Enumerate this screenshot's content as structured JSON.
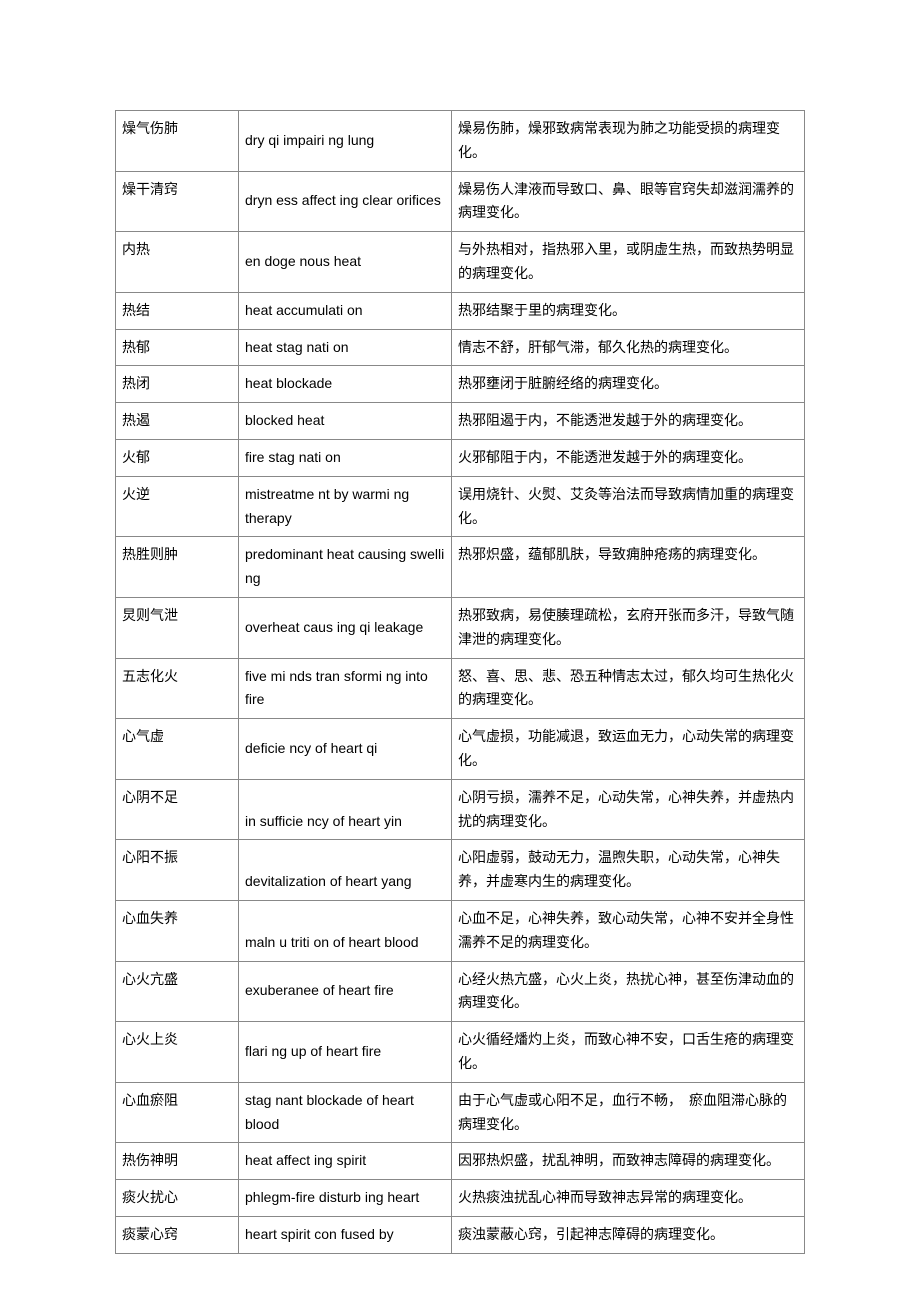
{
  "table": {
    "columns": [
      "term_zh",
      "term_en",
      "description"
    ],
    "col_widths": [
      "110px",
      "200px",
      "auto"
    ],
    "border_color": "#888888",
    "background_color": "#ffffff",
    "font_family_cn": "SimSun",
    "font_family_en": "Arial",
    "font_size": 14,
    "rows": [
      {
        "zh": "燥气伤肺",
        "en": "dry qi impairi ng lung",
        "desc": "燥易伤肺，燥邪致病常表现为肺之功能受损的病理变化。",
        "en_align": "top"
      },
      {
        "zh": "燥干清窍",
        "en": "dryn ess affect ing clear orifices",
        "desc": "燥易伤人津液而导致口、鼻、眼等官窍失却滋润濡养的病理变化。",
        "en_align": "top"
      },
      {
        "zh": "内热",
        "en": "en doge nous heat",
        "desc": "与外热相对，指热邪入里，或阴虚生热，而致热势明显的病理变化。",
        "en_align": "top"
      },
      {
        "zh": "热结",
        "en": "heat accumulati on",
        "desc": "热邪结聚于里的病理变化。",
        "en_align": "top"
      },
      {
        "zh": "热郁",
        "en": "heat stag nati on",
        "desc": "情志不舒，肝郁气滞，郁久化热的病理变化。",
        "en_align": "top"
      },
      {
        "zh": "热闭",
        "en": "heat blockade",
        "desc": "热邪壅闭于脏腑经络的病理变化。",
        "en_align": "top"
      },
      {
        "zh": "热遏",
        "en": "blocked heat",
        "desc": "热邪阻遏于内，不能透泄发越于外的病理变化。",
        "en_align": "top"
      },
      {
        "zh": "火郁",
        "en": "fire stag nati on",
        "desc": "火邪郁阻于内，不能透泄发越于外的病理变化。",
        "en_align": "top"
      },
      {
        "zh": "火逆",
        "en": "mistreatme nt by warmi ng therapy",
        "desc": "误用烧针、火熨、艾灸等治法而导致病情加重的病理变化。",
        "en_align": "top"
      },
      {
        "zh": "热胜则肿",
        "en": "predominant heat causing swelli ng",
        "desc": "热邪炽盛，蕴郁肌肤，导致痈肿疮疡的病理变化。",
        "en_align": "top"
      },
      {
        "zh": "炅则气泄",
        "en": "overheat caus ing qi leakage",
        "desc": "热邪致病，易使腠理疏松，玄府开张而多汗，导致气随津泄的病理变化。",
        "en_align": "top"
      },
      {
        "zh": "五志化火",
        "en": "five mi nds tran sformi ng into fire",
        "desc": "怒、喜、思、悲、恐五种情志太过，郁久均可生热化火的病理变化。",
        "en_align": "top"
      },
      {
        "zh": "心气虚",
        "en": "deficie ncy of heart qi",
        "desc": "心气虚损，功能减退，致运血无力，心动失常的病理变化。",
        "en_align": "top"
      },
      {
        "zh": "心阴不足",
        "en": "in sufficie ncy of heart yin",
        "desc": "心阴亏损，濡养不足，心动失常，心神失养，并虚热内扰的病理变化。",
        "en_align": "bottom"
      },
      {
        "zh": "心阳不振",
        "en": "devitalization of heart yang",
        "desc": "心阳虚弱，鼓动无力，温煦失职，心动失常，心神失养，并虚寒内生的病理变化。",
        "en_align": "bottom"
      },
      {
        "zh": "心血失养",
        "en": "maln u triti on of heart blood",
        "desc": "心血不足，心神失养，致心动失常，心神不安并全身性濡养不足的病理变化。",
        "en_align": "bottom"
      },
      {
        "zh": "心火亢盛",
        "en": "exuberanee of heart fire",
        "desc": "心经火热亢盛，心火上炎，热扰心神，甚至伤津动血的病理变化。",
        "en_align": "top"
      },
      {
        "zh": "心火上炎",
        "en": "flari ng up of heart fire",
        "desc": "心火循经燔灼上炎，而致心神不安，口舌生疮的病理变化。",
        "en_align": "top"
      },
      {
        "zh": "心血瘀阻",
        "en": "stag nant blockade of heart blood",
        "desc": "由于心气虚或心阳不足，血行不畅，　瘀血阻滞心脉的病理变化。",
        "en_align": "top"
      },
      {
        "zh": "热伤神明",
        "en": "heat affect ing spirit",
        "desc": "因邪热炽盛，扰乱神明，而致神志障碍的病理变化。",
        "en_align": "top"
      },
      {
        "zh": "痰火扰心",
        "en": "phlegm-fire disturb ing heart",
        "desc": "火热痰浊扰乱心神而导致神志异常的病理变化。",
        "en_align": "bottom"
      },
      {
        "zh": "痰蒙心窍",
        "en": "heart spirit con fused by",
        "desc": "痰浊蒙蔽心窍，引起神志障碍的病理变化。",
        "en_align": "top"
      }
    ]
  }
}
